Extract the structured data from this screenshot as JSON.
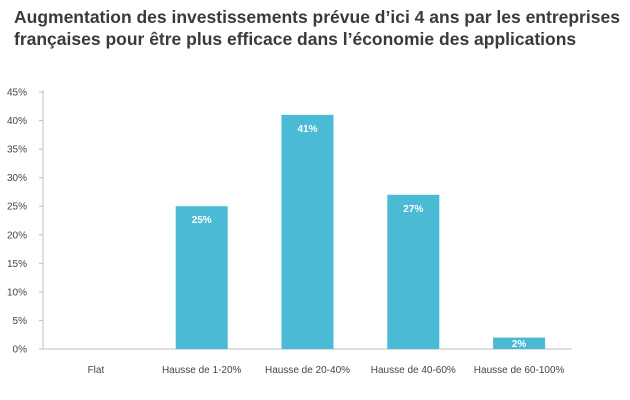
{
  "chart_data": {
    "type": "bar",
    "title_lines": [
      "Augmentation des investissements prévue d’ici 4 ans par les entreprises",
      "françaises  pour être plus efficace dans l’économie des applications"
    ],
    "categories": [
      "Flat",
      "Hausse de 1-20%",
      "Hausse de 20-40%",
      "Hausse de 40-60%",
      "Hausse de 60-100%"
    ],
    "values": [
      0,
      25,
      41,
      27,
      2
    ],
    "data_labels": [
      "",
      "25%",
      "41%",
      "27%",
      "2%"
    ],
    "yticks": [
      0,
      5,
      10,
      15,
      20,
      25,
      30,
      35,
      40,
      45
    ],
    "ytick_labels": [
      "0%",
      "5%",
      "10%",
      "15%",
      "20%",
      "25%",
      "30%",
      "35%",
      "40%",
      "45%"
    ],
    "ylim": [
      0,
      45
    ],
    "xlabel": "",
    "ylabel": "",
    "grid": false,
    "bar_color": "#4bbad4"
  }
}
